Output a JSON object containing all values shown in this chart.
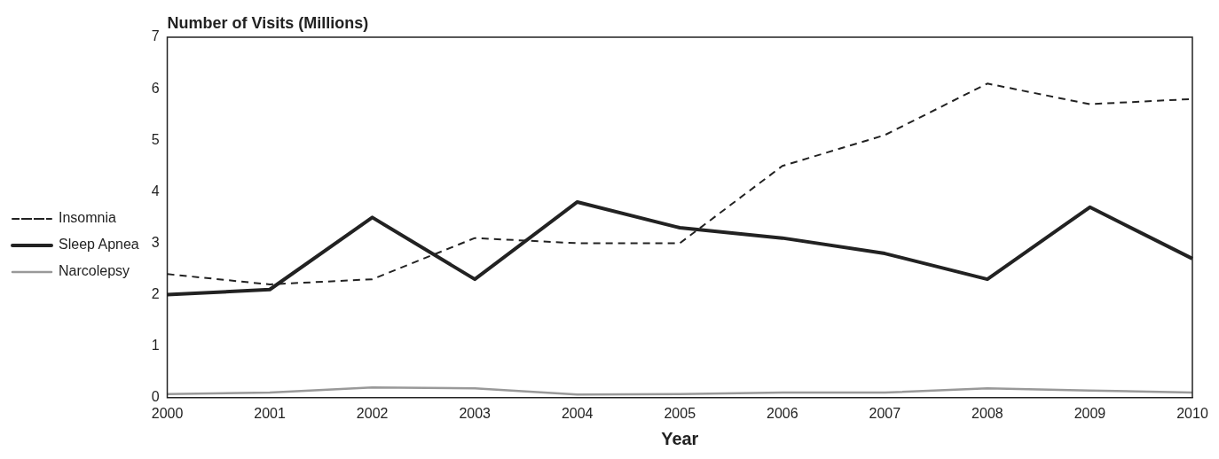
{
  "chart_data": {
    "type": "line",
    "title": "Number of Visits (Millions)",
    "xlabel": "Year",
    "categories": [
      "2000",
      "2001",
      "2002",
      "2003",
      "2004",
      "2005",
      "2006",
      "2007",
      "2008",
      "2009",
      "2010"
    ],
    "series": [
      {
        "name": "Insomnia",
        "color": "#222222",
        "line_style": "dashed",
        "values": [
          2.4,
          2.2,
          2.3,
          3.1,
          3.0,
          3.0,
          4.5,
          5.1,
          6.1,
          5.7,
          5.8
        ]
      },
      {
        "name": "Sleep Apnea",
        "color": "#222222",
        "line_style": "solid",
        "values": [
          2.0,
          2.1,
          3.5,
          2.3,
          3.8,
          3.3,
          3.1,
          2.8,
          2.3,
          3.7,
          2.7
        ]
      },
      {
        "name": "Narcolepsy",
        "color": "#999999",
        "line_style": "solid",
        "values": [
          0.07,
          0.1,
          0.2,
          0.18,
          0.06,
          0.07,
          0.1,
          0.1,
          0.18,
          0.14,
          0.1
        ]
      }
    ],
    "ylim": [
      0,
      7
    ],
    "yticks": [
      0,
      1,
      2,
      3,
      4,
      5,
      6,
      7
    ],
    "grid": false,
    "legend": "left",
    "marker": "none"
  }
}
